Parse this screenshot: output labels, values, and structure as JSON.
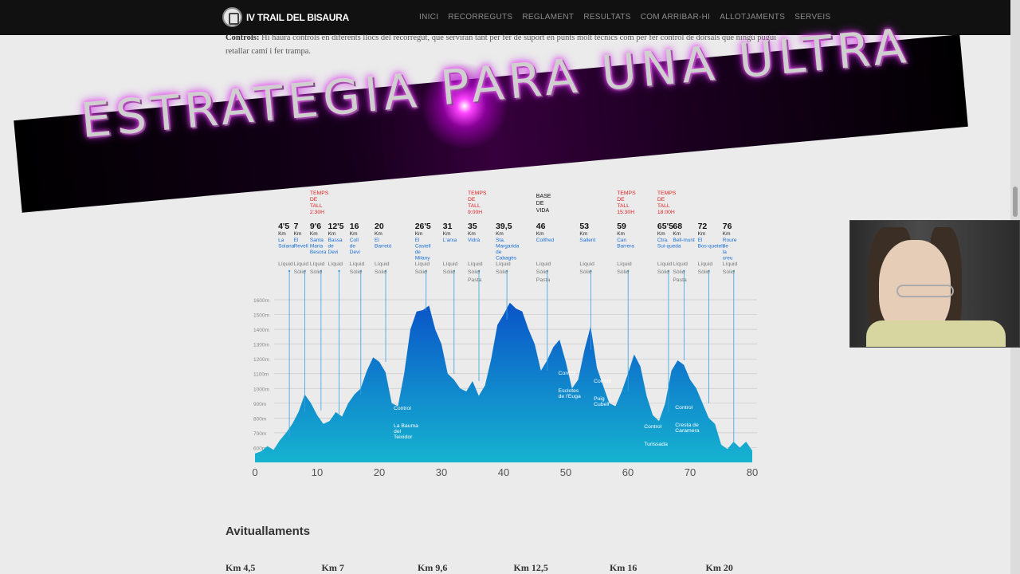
{
  "nav": {
    "brand": "IV TRAIL DEL BISAURA",
    "menu": [
      "INICI",
      "RECORREGUTS",
      "REGLAMENT",
      "RESULTATS",
      "COM ARRIBAR-HI",
      "ALLOTJAMENTS",
      "SERVEIS"
    ]
  },
  "intro": {
    "label": "Controls:",
    "text": " Hi haurà controls en diferents llocs del recorregut, que serviran tant per fer de suport en punts molt tècnics com per fer control de dorsals que ningú pugui retallar camí i fer trampa."
  },
  "banner": {
    "text": "ESTRATEGIA PARA UNA ULTRA"
  },
  "chart_data": {
    "type": "area",
    "x_ticks": [
      "0",
      "10",
      "20",
      "30",
      "40",
      "50",
      "60",
      "70",
      "80"
    ],
    "y_ticks": [
      "1600m",
      "1500m",
      "1400m",
      "1300m",
      "1200m",
      "1100m",
      "1000m",
      "900m",
      "800m",
      "700m",
      "600m"
    ],
    "fill_colors": [
      "#0a54c8",
      "#16b3d0"
    ],
    "profile": [
      [
        0,
        560
      ],
      [
        1,
        575
      ],
      [
        2,
        610
      ],
      [
        3,
        585
      ],
      [
        4,
        650
      ],
      [
        5,
        700
      ],
      [
        6,
        760
      ],
      [
        7,
        840
      ],
      [
        8,
        960
      ],
      [
        9,
        900
      ],
      [
        10,
        820
      ],
      [
        11,
        760
      ],
      [
        12,
        780
      ],
      [
        13,
        840
      ],
      [
        14,
        810
      ],
      [
        15,
        900
      ],
      [
        16,
        960
      ],
      [
        17,
        1000
      ],
      [
        18,
        1120
      ],
      [
        19,
        1210
      ],
      [
        20,
        1180
      ],
      [
        21,
        1110
      ],
      [
        22,
        900
      ],
      [
        23,
        880
      ],
      [
        24,
        1100
      ],
      [
        25,
        1400
      ],
      [
        26,
        1520
      ],
      [
        27,
        1530
      ],
      [
        28,
        1560
      ],
      [
        29,
        1400
      ],
      [
        30,
        1300
      ],
      [
        31,
        1100
      ],
      [
        32,
        1060
      ],
      [
        33,
        1000
      ],
      [
        34,
        980
      ],
      [
        35,
        1050
      ],
      [
        36,
        950
      ],
      [
        37,
        1020
      ],
      [
        38,
        1200
      ],
      [
        39,
        1430
      ],
      [
        40,
        1500
      ],
      [
        41,
        1580
      ],
      [
        42,
        1540
      ],
      [
        43,
        1520
      ],
      [
        44,
        1400
      ],
      [
        45,
        1300
      ],
      [
        46,
        1120
      ],
      [
        47,
        1190
      ],
      [
        48,
        1280
      ],
      [
        49,
        1330
      ],
      [
        50,
        1180
      ],
      [
        51,
        1000
      ],
      [
        52,
        1060
      ],
      [
        53,
        1260
      ],
      [
        54,
        1420
      ],
      [
        55,
        1140
      ],
      [
        56,
        1020
      ],
      [
        57,
        900
      ],
      [
        58,
        880
      ],
      [
        59,
        980
      ],
      [
        60,
        1100
      ],
      [
        61,
        1230
      ],
      [
        62,
        1150
      ],
      [
        63,
        950
      ],
      [
        64,
        820
      ],
      [
        65,
        780
      ],
      [
        66,
        900
      ],
      [
        67,
        1120
      ],
      [
        68,
        1190
      ],
      [
        69,
        1160
      ],
      [
        70,
        1060
      ],
      [
        71,
        1000
      ],
      [
        72,
        900
      ],
      [
        73,
        800
      ],
      [
        74,
        760
      ],
      [
        75,
        620
      ],
      [
        76,
        590
      ],
      [
        77,
        640
      ],
      [
        78,
        600
      ],
      [
        79,
        640
      ],
      [
        80,
        580
      ]
    ],
    "aid_stations": [
      {
        "km": "4'5",
        "unit": "Km",
        "name": "La Solana",
        "services": "Líquid",
        "tall": ""
      },
      {
        "km": "7",
        "unit": "Km",
        "name": "El Revell",
        "services": "Líquid Sòlid",
        "tall": ""
      },
      {
        "km": "9'6",
        "unit": "Km",
        "name": "Santa Maria Besora",
        "services": "Líquid Sòlid",
        "tall": "TEMPS DE TALL 2:30H"
      },
      {
        "km": "12'5",
        "unit": "Km",
        "name": "Bassa de Devi",
        "services": "Líquid",
        "tall": ""
      },
      {
        "km": "16",
        "unit": "Km",
        "name": "Coll de Devi",
        "services": "Líquid Sòlid",
        "tall": ""
      },
      {
        "km": "20",
        "unit": "Km",
        "name": "El Barretó",
        "services": "Líquid Sòlid",
        "tall": ""
      },
      {
        "km": "26'5",
        "unit": "Km",
        "name": "El Castell de Milany",
        "services": "Líquid Sòlid",
        "tall": ""
      },
      {
        "km": "31",
        "unit": "Km",
        "name": "L'arxa",
        "services": "Líquid Sòlid",
        "tall": ""
      },
      {
        "km": "35",
        "unit": "Km",
        "name": "Vidrà",
        "services": "Líquid Sòlid Pasta",
        "tall": "TEMPS DE TALL 9:00H"
      },
      {
        "km": "39,5",
        "unit": "Km",
        "name": "Sta. Margarida de Cabagès",
        "services": "Líquid Sòlid",
        "tall": ""
      },
      {
        "km": "46",
        "unit": "Km",
        "name": "Collfred",
        "services": "Líquid Sòlid Pasta",
        "tall": "",
        "base": "BASE DE VIDA"
      },
      {
        "km": "53",
        "unit": "Km",
        "name": "Sallent",
        "services": "Líquid Sòlid",
        "tall": ""
      },
      {
        "km": "59",
        "unit": "Km",
        "name": "Can Barrera",
        "services": "Líquid Sòlid",
        "tall": "TEMPS DE TALL 15:30H"
      },
      {
        "km": "65'5",
        "unit": "Km",
        "name": "Ctra. Sui-queda",
        "services": "Líquid Sòlid",
        "tall": "TEMPS DE TALL 18:00H"
      },
      {
        "km": "68",
        "unit": "Km",
        "name": "Bell-munt",
        "services": "Líquid Sòlid Pasta",
        "tall": ""
      },
      {
        "km": "72",
        "unit": "Km",
        "name": "El Bos-quetell",
        "services": "Líquid Sòlid",
        "tall": ""
      },
      {
        "km": "76",
        "unit": "Km",
        "name": "Roure de la creu",
        "services": "Líquid Sòlid",
        "tall": ""
      }
    ],
    "controls": [
      {
        "label": "Control",
        "place": "La Bauma del Teixidor"
      },
      {
        "label": "Control",
        "place": "Esclotes de l'Euga"
      },
      {
        "label": "Control",
        "place": "Puig Cubell"
      },
      {
        "label": "Control",
        "place": "Turissada"
      },
      {
        "label": "Control",
        "place": "Cresta de Caramera"
      }
    ]
  },
  "section": {
    "title": "Avituallaments"
  },
  "km_list": [
    "Km 4,5",
    "Km 7",
    "Km 9,6",
    "Km 12,5",
    "Km 16",
    "Km 20"
  ]
}
